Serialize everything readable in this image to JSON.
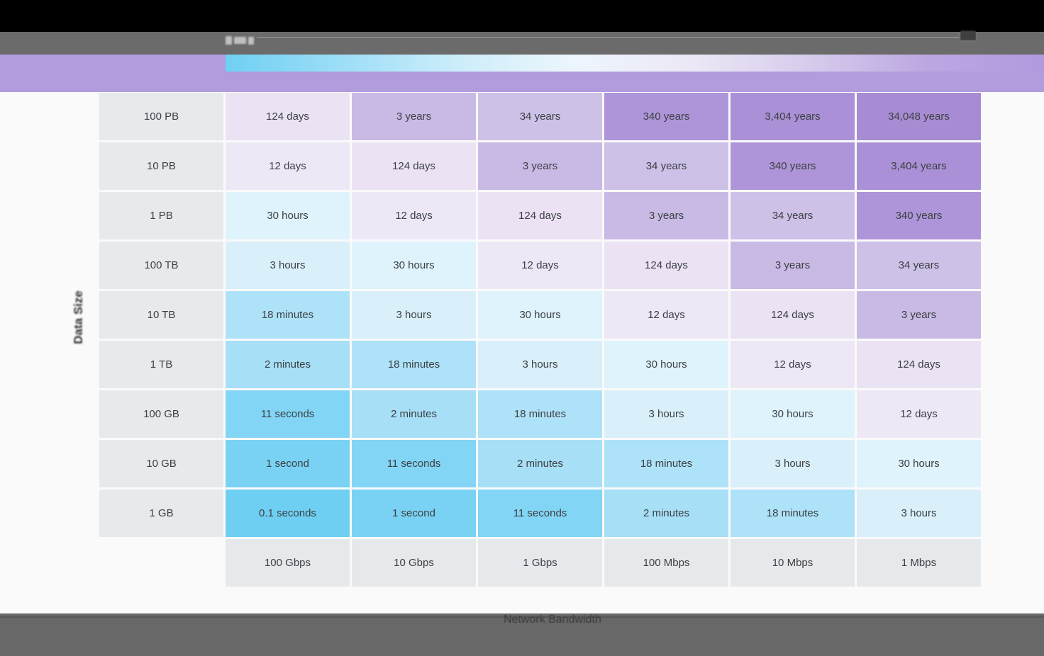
{
  "theme": {
    "letterbox": "#000000",
    "toolbar_gray": "#6b6b6b",
    "band_purple": "#b19cdd",
    "page_bg": "#fafafa",
    "bottom_bar": "#686868",
    "bar_line": "#585858",
    "cell_text": "#3c4043",
    "header_fill": "#e7eaed",
    "footer_fill": "#e6e9ec"
  },
  "legend": {
    "gradient_stops": [
      "#6fd0f4",
      "#9ddef7",
      "#cdedfa",
      "#edf6fc",
      "#ece7f6",
      "#d6cbec",
      "#bca7e2",
      "#b19ade"
    ]
  },
  "chart_data": {
    "type": "heatmap",
    "title": "",
    "xlabel": "Network Bandwidth",
    "ylabel": "Data Size",
    "columns": [
      "100 Gbps",
      "10 Gbps",
      "1 Gbps",
      "100 Mbps",
      "10 Mbps",
      "1 Mbps"
    ],
    "rows": [
      "100 PB",
      "10 PB",
      "1 PB",
      "100 TB",
      "10 TB",
      "1 TB",
      "100 GB",
      "10 GB",
      "1 GB"
    ],
    "values": [
      [
        "124 days",
        "3 years",
        "34 years",
        "340 years",
        "3,404 years",
        "34,048 years"
      ],
      [
        "12 days",
        "124 days",
        "3 years",
        "34 years",
        "340 years",
        "3,404 years"
      ],
      [
        "30 hours",
        "12 days",
        "124 days",
        "3 years",
        "34 years",
        "340 years"
      ],
      [
        "3 hours",
        "30 hours",
        "12 days",
        "124 days",
        "3 years",
        "34 years"
      ],
      [
        "18 minutes",
        "3 hours",
        "30 hours",
        "12 days",
        "124 days",
        "3 years"
      ],
      [
        "2 minutes",
        "18 minutes",
        "3 hours",
        "30 hours",
        "12 days",
        "124 days"
      ],
      [
        "11 seconds",
        "2 minutes",
        "18 minutes",
        "3 hours",
        "30 hours",
        "12 days"
      ],
      [
        "1 second",
        "11 seconds",
        "2 minutes",
        "18 minutes",
        "3 hours",
        "30 hours"
      ],
      [
        "0.1 seconds",
        "1 second",
        "11 seconds",
        "2 minutes",
        "18 minutes",
        "3 hours"
      ]
    ],
    "color_scale": {
      "0.1 seconds": "#6fcff3",
      "1 second": "#79d2f4",
      "11 seconds": "#82d5f5",
      "2 minutes": "#a7dff7",
      "18 minutes": "#aee2f8",
      "3 hours": "#d9f0fb",
      "30 hours": "#dff3fc",
      "12 days": "#eee8f6",
      "124 days": "#ebe3f4",
      "3 years": "#c9bae5",
      "34 years": "#cdc1e8",
      "340 years": "#ae95d9",
      "3,404 years": "#aa90d6",
      "34,048 years": "#a78cd3"
    },
    "legend_position": "top",
    "grid": false
  }
}
